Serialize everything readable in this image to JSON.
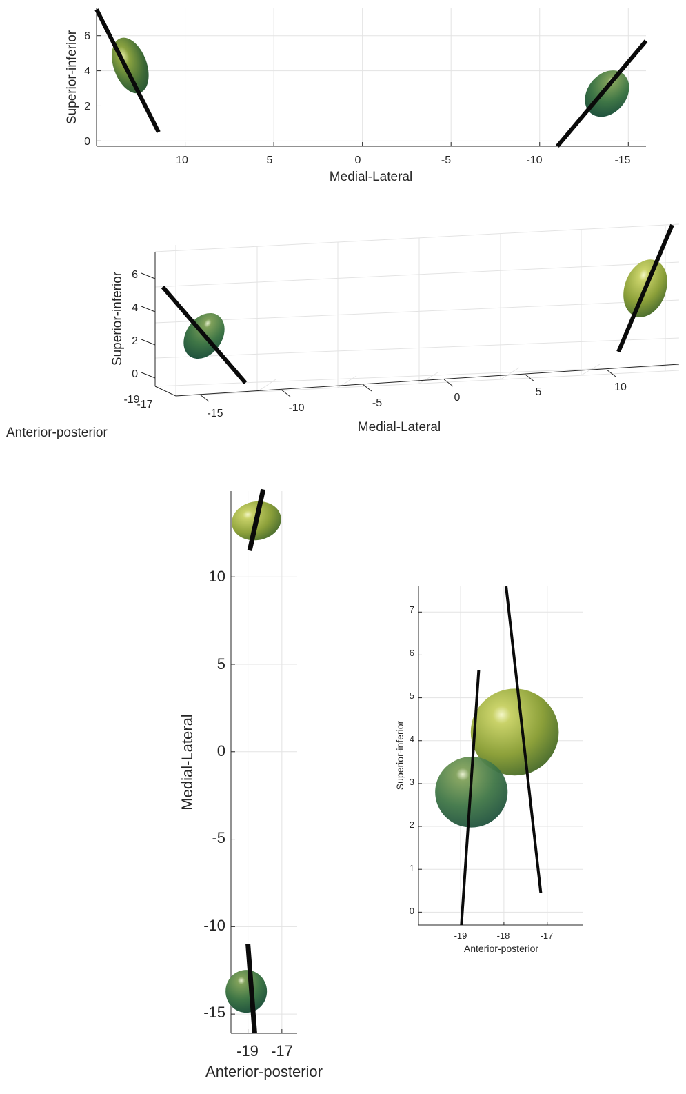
{
  "chart_data": [
    {
      "type": "3d-surface-ellipsoids",
      "view": "front (Medial-Lateral vs Superior-inferior)",
      "xlabel": "Medial-Lateral",
      "ylabel": "Superior-inferior",
      "x_reversed": true,
      "xlim": [
        15,
        -16
      ],
      "ylim": [
        -0.3,
        7.6
      ],
      "xticks": [
        10,
        5,
        0,
        -5,
        -10,
        -15
      ],
      "yticks": [
        0,
        2,
        4,
        6
      ],
      "grid": true,
      "ellipsoids": [
        {
          "ml": 13.1,
          "si": 4.3,
          "color": "#4e7a38"
        },
        {
          "ml": -13.8,
          "si": 2.7,
          "color": "#2e6a45"
        }
      ],
      "axes_lines": [
        {
          "ml": [
            15,
            11.5
          ],
          "si": [
            7.5,
            0.5
          ]
        },
        {
          "ml": [
            -11.0,
            -16.0
          ],
          "si": [
            -0.3,
            5.7
          ]
        }
      ]
    },
    {
      "type": "3d-surface-ellipsoids",
      "view": "perspective",
      "xlabel": "Medial-Lateral",
      "ylabel": "Superior-inferior",
      "zlabel": "Anterior-posterior",
      "xticks": [
        -15,
        -10,
        -5,
        0,
        5,
        10
      ],
      "yticks": [
        0,
        2,
        4,
        6
      ],
      "zticks": [
        -19,
        -17
      ],
      "grid": true
    },
    {
      "type": "3d-surface-ellipsoids",
      "view": "top (Anterior-posterior vs Medial-Lateral)",
      "xlabel": "Anterior-posterior",
      "ylabel": "Medial-Lateral",
      "xlim": [
        -20.0,
        -16.1
      ],
      "ylim": [
        -16.1,
        14.9
      ],
      "xticks": [
        -19,
        -17
      ],
      "yticks": [
        10,
        5,
        0,
        -5,
        -10,
        -15
      ],
      "grid": true,
      "ellipsoids": [
        {
          "ap": -18.5,
          "ml": 13.2,
          "color": "#98ab3c"
        },
        {
          "ap": -19.1,
          "ml": -13.7,
          "color": "#3a6f40"
        }
      ],
      "axes_lines": [
        {
          "ap": [
            -18.1,
            -18.9
          ],
          "ml": [
            15.0,
            11.5
          ]
        },
        {
          "ap": [
            -19.0,
            -18.6
          ],
          "ml": [
            -11.0,
            -16.1
          ]
        }
      ]
    },
    {
      "type": "3d-surface-ellipsoids",
      "view": "side (Anterior-posterior vs Superior-inferior)",
      "xlabel": "Anterior-posterior",
      "ylabel": "Superior-inferior",
      "xlim": [
        -19.97,
        -16.17
      ],
      "ylim": [
        -0.3,
        7.6
      ],
      "xticks": [
        -19,
        -18,
        -17
      ],
      "yticks": [
        0,
        1,
        2,
        3,
        4,
        5,
        6,
        7
      ],
      "grid": true,
      "ellipsoids": [
        {
          "ap": -17.75,
          "si": 4.2,
          "rap": 1.42,
          "rsi": 1.62,
          "color": "#98ab3c"
        },
        {
          "ap": -18.75,
          "si": 2.8,
          "rap": 1.17,
          "rsi": 1.32,
          "color": "#2e6a45"
        }
      ],
      "axes_lines": [
        {
          "ap": [
            -17.95,
            -17.15
          ],
          "si": [
            7.6,
            0.45
          ]
        },
        {
          "ap": [
            -18.58,
            -18.98
          ],
          "si": [
            5.65,
            -0.3
          ]
        }
      ]
    }
  ]
}
